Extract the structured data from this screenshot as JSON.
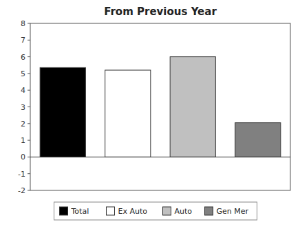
{
  "chart_data": {
    "type": "bar",
    "title": "From Previous Year",
    "categories": [
      "Total",
      "Ex Auto",
      "Auto",
      "Gen Mer"
    ],
    "values": [
      5.35,
      5.2,
      6.0,
      2.05
    ],
    "colors": [
      "#000000",
      "#ffffff",
      "#c0c0c0",
      "#808080"
    ],
    "ylim": [
      -2,
      8
    ],
    "yticks": [
      -2,
      -1,
      0,
      1,
      2,
      3,
      4,
      5,
      6,
      7,
      8
    ],
    "grid": false,
    "legend": "bottom",
    "tick_labels": "y"
  }
}
